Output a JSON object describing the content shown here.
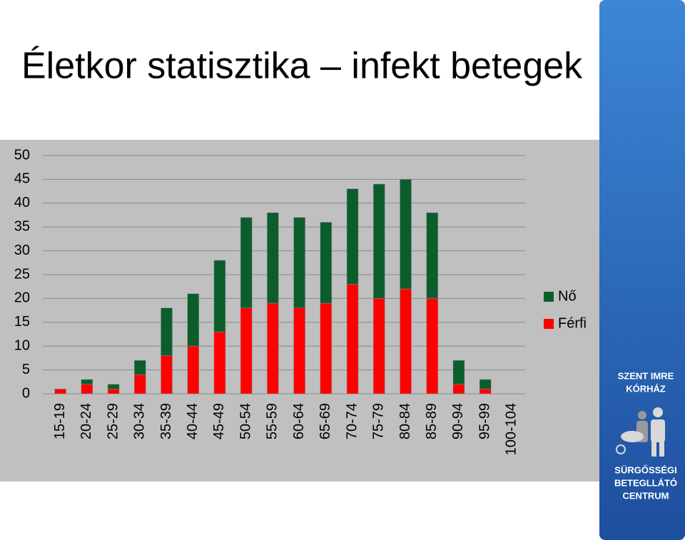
{
  "chart_data": {
    "type": "stacked-bar",
    "title": "Életkor statisztika – infekt betegek",
    "categories": [
      "15-19",
      "20-24",
      "25-29",
      "30-34",
      "35-39",
      "40-44",
      "45-49",
      "50-54",
      "55-59",
      "60-64",
      "65-69",
      "70-74",
      "75-79",
      "80-84",
      "85-89",
      "90-94",
      "95-99",
      "100-104"
    ],
    "series": [
      {
        "name": "Nő",
        "color": "#0b5e2c",
        "values": [
          0,
          1,
          1,
          3,
          10,
          11,
          15,
          19,
          19,
          19,
          17,
          20,
          24,
          23,
          18,
          5,
          2,
          0
        ]
      },
      {
        "name": "Férfi",
        "color": "#ff0000",
        "values": [
          1,
          2,
          1,
          4,
          8,
          10,
          13,
          18,
          19,
          18,
          19,
          23,
          20,
          22,
          20,
          2,
          1,
          0
        ]
      }
    ],
    "ylim": [
      0,
      50
    ],
    "yticks": [
      0,
      5,
      10,
      15,
      20,
      25,
      30,
      35,
      40,
      45,
      50
    ],
    "grid": true,
    "legend": "right"
  },
  "logo": {
    "top": [
      "SZENT IMRE",
      "KÓRHÁZ"
    ],
    "bottom": [
      "SÜRGŐSSÉGI",
      "BETEGLLÁTÓ",
      "CENTRUM"
    ]
  }
}
